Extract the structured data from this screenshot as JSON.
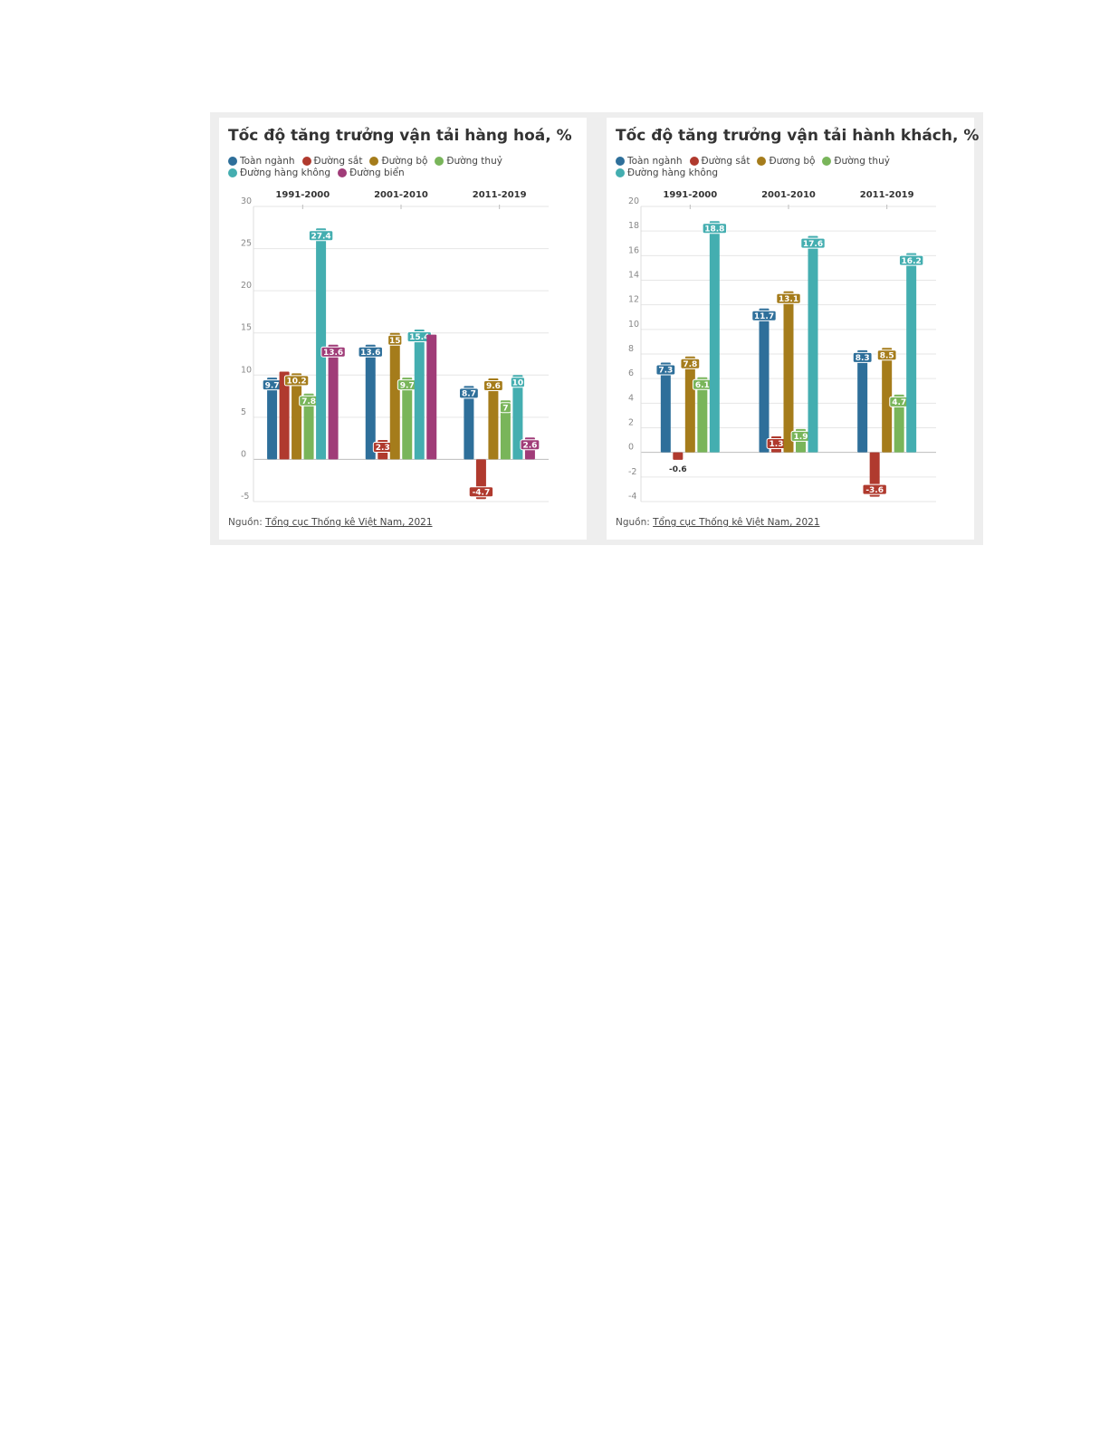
{
  "chart_data": [
    {
      "type": "bar",
      "title": "Tốc độ tăng trưởng vận tải hàng hoá, %",
      "categories": [
        "1991-2000",
        "2001-2010",
        "2011-2019"
      ],
      "series": [
        {
          "name": "Toàn ngành",
          "color": "#2e6f9a",
          "values": [
            9.7,
            13.6,
            8.7
          ]
        },
        {
          "name": "Đường sắt",
          "color": "#b03a2e",
          "values": [
            10.4,
            2.3,
            -4.7
          ]
        },
        {
          "name": "Đường bộ",
          "color": "#a57c1b",
          "values": [
            10.2,
            15,
            9.6
          ]
        },
        {
          "name": "Đường thuỷ",
          "color": "#79b55a",
          "values": [
            7.8,
            9.7,
            7
          ]
        },
        {
          "name": "Đường hàng không",
          "color": "#44aeb0",
          "values": [
            27.4,
            15.4,
            10
          ]
        },
        {
          "name": "Đường biển",
          "color": "#a03c78",
          "values": [
            13.6,
            14.8,
            2.6
          ]
        }
      ],
      "labels": [
        [
          "9.7",
          "",
          "10.2",
          "7.8",
          "27.4",
          "13.6"
        ],
        [
          "13.6",
          "2.3",
          "15",
          "9.7",
          "15.4",
          ""
        ],
        [
          "8.7",
          "-4.7",
          "9.6",
          "7",
          "10",
          "2.6"
        ]
      ],
      "ylim": [
        -5,
        30
      ],
      "yticks": [
        -5,
        0,
        5,
        10,
        15,
        20,
        25,
        30
      ],
      "grid": true,
      "legend": "top-left",
      "source_prefix": "Nguồn:",
      "source": "Tổng cục Thống kê Việt Nam, 2021"
    },
    {
      "type": "bar",
      "title": "Tốc độ tăng trưởng vận tải hành khách, %",
      "categories": [
        "1991-2000",
        "2001-2010",
        "2011-2019"
      ],
      "series": [
        {
          "name": "Toàn ngành",
          "color": "#2e6f9a",
          "values": [
            7.3,
            11.7,
            8.3
          ]
        },
        {
          "name": "Đường sắt",
          "color": "#b03a2e",
          "values": [
            -0.6,
            1.3,
            -3.6
          ]
        },
        {
          "name": "Đương bộ",
          "color": "#a57c1b",
          "values": [
            7.8,
            13.1,
            8.5
          ]
        },
        {
          "name": "Đường thuỷ",
          "color": "#79b55a",
          "values": [
            6.1,
            1.9,
            4.7
          ]
        },
        {
          "name": "Đường hàng không",
          "color": "#44aeb0",
          "values": [
            18.8,
            17.6,
            16.2
          ]
        }
      ],
      "labels": [
        [
          "7.3",
          "-0.6",
          "7.8",
          "6.1",
          "18.8"
        ],
        [
          "11.7",
          "1.3",
          "13.1",
          "1.9",
          "17.6"
        ],
        [
          "8.3",
          "-3.6",
          "8.5",
          "4.7",
          "16.2"
        ]
      ],
      "ylim": [
        -4,
        20
      ],
      "yticks": [
        -4,
        -2,
        0,
        2,
        4,
        6,
        8,
        10,
        12,
        14,
        16,
        18,
        20
      ],
      "grid": true,
      "legend": "top-left",
      "source_prefix": "Nguồn:",
      "source": "Tổng cục Thống kê Việt Nam, 2021"
    }
  ]
}
